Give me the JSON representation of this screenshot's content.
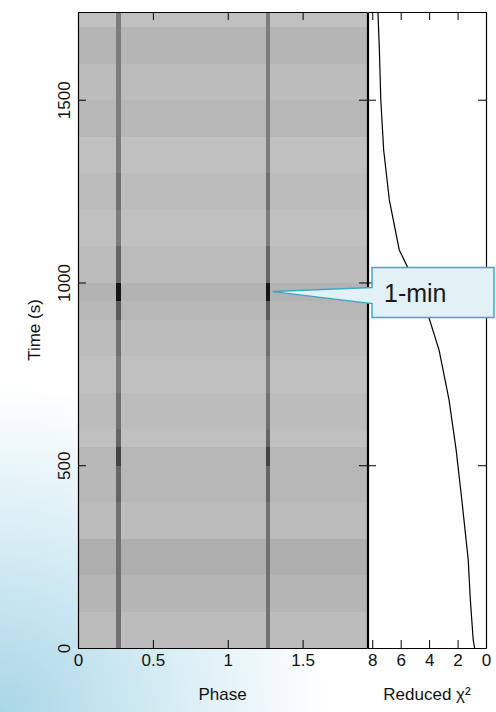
{
  "chart_data": [
    {
      "type": "heatmap",
      "xlabel": "Phase",
      "ylabel": "Time (s)",
      "x_edges": [
        0,
        0.255,
        0.285,
        1.255,
        1.285,
        1.93
      ],
      "y_edges": [
        0,
        100,
        200,
        300,
        400,
        500,
        550,
        600,
        700,
        800,
        900,
        950,
        1000,
        1100,
        1200,
        1300,
        1400,
        1500,
        1600,
        1700,
        1740
      ],
      "cells": [
        [
          0.22,
          0.55,
          0.22,
          0.55,
          0.22
        ],
        [
          0.25,
          0.55,
          0.25,
          0.55,
          0.25
        ],
        [
          0.28,
          0.55,
          0.28,
          0.55,
          0.28
        ],
        [
          0.22,
          0.55,
          0.22,
          0.55,
          0.22
        ],
        [
          0.24,
          0.6,
          0.24,
          0.6,
          0.24
        ],
        [
          0.24,
          0.75,
          0.24,
          0.75,
          0.24
        ],
        [
          0.2,
          0.6,
          0.2,
          0.6,
          0.2
        ],
        [
          0.22,
          0.55,
          0.22,
          0.55,
          0.22
        ],
        [
          0.2,
          0.5,
          0.2,
          0.5,
          0.2
        ],
        [
          0.22,
          0.55,
          0.22,
          0.55,
          0.22
        ],
        [
          0.24,
          0.65,
          0.24,
          0.65,
          0.24
        ],
        [
          0.26,
          0.95,
          0.26,
          0.95,
          0.26
        ],
        [
          0.22,
          0.6,
          0.22,
          0.6,
          0.22
        ],
        [
          0.2,
          0.5,
          0.2,
          0.5,
          0.2
        ],
        [
          0.22,
          0.55,
          0.22,
          0.55,
          0.22
        ],
        [
          0.2,
          0.5,
          0.2,
          0.5,
          0.2
        ],
        [
          0.24,
          0.5,
          0.24,
          0.5,
          0.24
        ],
        [
          0.22,
          0.5,
          0.22,
          0.5,
          0.22
        ],
        [
          0.25,
          0.5,
          0.25,
          0.5,
          0.25
        ],
        [
          0.2,
          0.5,
          0.2,
          0.5,
          0.2
        ]
      ],
      "zlim": [
        0,
        1
      ],
      "xlim": [
        0,
        1.93
      ],
      "xticks": [
        0,
        0.5,
        1,
        1.5
      ],
      "ylim": [
        0,
        1740
      ],
      "yticks": [
        0,
        500,
        1000,
        1500
      ],
      "annotations": [
        {
          "text": "1-min",
          "x": 1.3,
          "y": 975
        }
      ]
    },
    {
      "type": "line",
      "orientation": "horizontal",
      "ylabel": "Reduced χ²",
      "color": "#000000",
      "x": [
        0,
        22,
        131,
        241,
        405,
        542,
        679,
        815,
        952,
        1089,
        1226,
        1363,
        1500,
        1636,
        1740
      ],
      "values": [
        0.8,
        0.9,
        1.1,
        1.25,
        1.7,
        2.1,
        2.6,
        3.3,
        4.4,
        6.1,
        6.8,
        7.2,
        7.4,
        7.5,
        7.6
      ],
      "xlim": [
        0,
        1740
      ],
      "xticks": [
        0,
        500,
        1000,
        1500
      ],
      "ylim": [
        8.3,
        0
      ],
      "yticks": [
        8,
        6,
        4,
        2,
        0
      ],
      "tick_labels": "y"
    }
  ]
}
